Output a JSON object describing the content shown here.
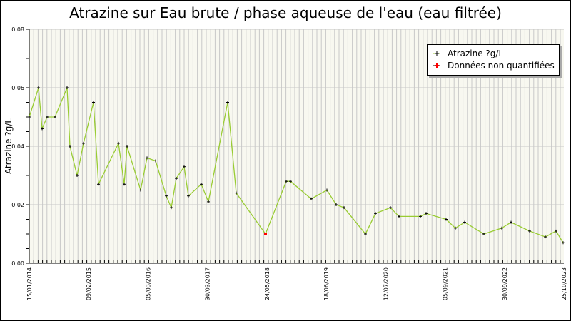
{
  "chart_data": {
    "type": "line",
    "title": "Atrazine sur Eau brute / phase aqueuse de l'eau (eau filtrée)",
    "xlabel": "",
    "ylabel": "Atrazine ?g/L",
    "ylim": [
      0,
      0.08
    ],
    "yticks": [
      "0.00",
      "0.02",
      "0.04",
      "0.06",
      "0.08"
    ],
    "xticks": [
      "15/01/2014",
      "09/02/2015",
      "05/03/2016",
      "30/03/2017",
      "24/05/2018",
      "18/06/2019",
      "12/07/2020",
      "05/09/2021",
      "30/09/2022",
      "25/10/2023"
    ],
    "grid": true,
    "legend_position": "top-right",
    "series": [
      {
        "name": "Atrazine ?g/L",
        "color": "#99cc33",
        "values": [
          0.05,
          0.06,
          0.046,
          0.05,
          0.05,
          0.06,
          0.04,
          0.03,
          0.041,
          0.055,
          0.027,
          0.041,
          0.027,
          0.04,
          0.025,
          0.036,
          0.035,
          0.023,
          0.019,
          0.029,
          0.033,
          0.023,
          0.027,
          0.021,
          0.055,
          0.024,
          0.01,
          0.028,
          0.028,
          0.022,
          0.025,
          0.02,
          0.019,
          0.01,
          0.017,
          0.019,
          0.016,
          0.016,
          0.017,
          0.015,
          0.012,
          0.014,
          0.01,
          0.012,
          0.014,
          0.011,
          0.009,
          0.011,
          0.007
        ]
      },
      {
        "name": "Données non quantifiées",
        "color": "#ff0000",
        "index": [
          26
        ]
      }
    ],
    "px": [
      41,
      54,
      59,
      66,
      77,
      94,
      98,
      108,
      117,
      131,
      138,
      166,
      174,
      178,
      197,
      206,
      218,
      233,
      240,
      247,
      258,
      264,
      282,
      292,
      319,
      331,
      372,
      401,
      407,
      436,
      458,
      471,
      482,
      512,
      526,
      547,
      559,
      589,
      597,
      625,
      638,
      651,
      678,
      703,
      716,
      742,
      764,
      779,
      789
    ]
  },
  "legend": {
    "item1": "Atrazine ?g/L",
    "item2": "Données non quantifiées"
  }
}
